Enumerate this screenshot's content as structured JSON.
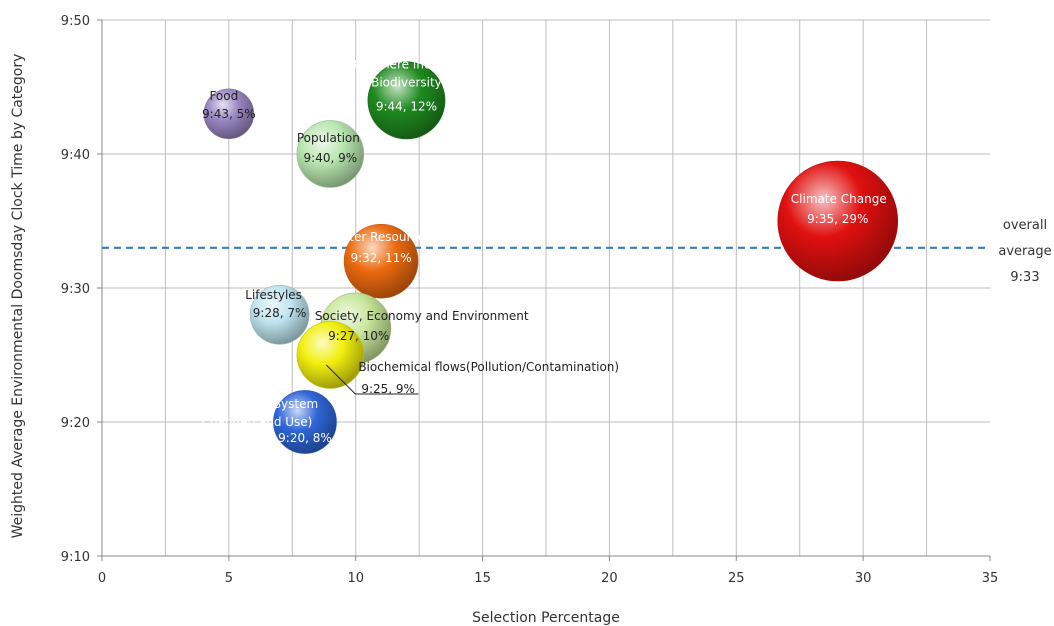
{
  "chart_data": {
    "type": "scatter",
    "bubble": true,
    "xlabel": "Selection Percentage",
    "ylabel": "Weighted Average Environmental Doomsday Clock Time by Category",
    "xlim": [
      0,
      35
    ],
    "ylim": [
      "9:10",
      "9:50"
    ],
    "x_ticks": [
      "0",
      "5",
      "10",
      "15",
      "20",
      "25",
      "30",
      "35"
    ],
    "y_ticks": [
      "9:10",
      "9:20",
      "9:30",
      "9:40",
      "9:50"
    ],
    "grid": true,
    "reference_line": {
      "y": "9:33",
      "label_lines": [
        "overall",
        "average",
        "9:33"
      ],
      "style": "dashed",
      "color": "#3b7cc4"
    },
    "points": [
      {
        "x": 5,
        "y": "9:43",
        "size": 5,
        "label_lines": [
          "Food"
        ],
        "value_label": "9:43, 5%",
        "color": "#9a86c2"
      },
      {
        "x": 12,
        "y": "9:44",
        "size": 12,
        "label_lines": [
          "Biosphere Integrity",
          "(Biodiversity)"
        ],
        "value_label": "9:44, 12%",
        "color": "#1f8a1f"
      },
      {
        "x": 9,
        "y": "9:40",
        "size": 9,
        "label_lines": [
          "Population"
        ],
        "value_label": "9:40, 9%",
        "color": "#b9e6b0"
      },
      {
        "x": 29,
        "y": "9:35",
        "size": 29,
        "label_lines": [
          "Climate Change"
        ],
        "value_label": "9:35, 29%",
        "color": "#e01010"
      },
      {
        "x": 11,
        "y": "9:32",
        "size": 11,
        "label_lines": [
          "Water Resources"
        ],
        "value_label": "9:32, 11%",
        "color": "#ec6a10"
      },
      {
        "x": 7,
        "y": "9:28",
        "size": 7,
        "label_lines": [
          "Lifestyles"
        ],
        "value_label": "9:28, 7%",
        "color": "#bfe3ef"
      },
      {
        "x": 10,
        "y": "9:27",
        "size": 10,
        "label_lines": [
          "Society, Economy and Environment"
        ],
        "value_label": "9:27, 10%",
        "color": "#c8e69a"
      },
      {
        "x": 9,
        "y": "9:25",
        "size": 9,
        "label_lines": [
          "Biochemical flows(Pollution/Contamination)"
        ],
        "value_label": "9:25, 9%",
        "color": "#f2ef10"
      },
      {
        "x": 8,
        "y": "9:20",
        "size": 8,
        "label_lines": [
          "Land-System",
          "Change(Land Use)"
        ],
        "value_label": "9:20, 8%",
        "color": "#2f66d8"
      }
    ]
  }
}
